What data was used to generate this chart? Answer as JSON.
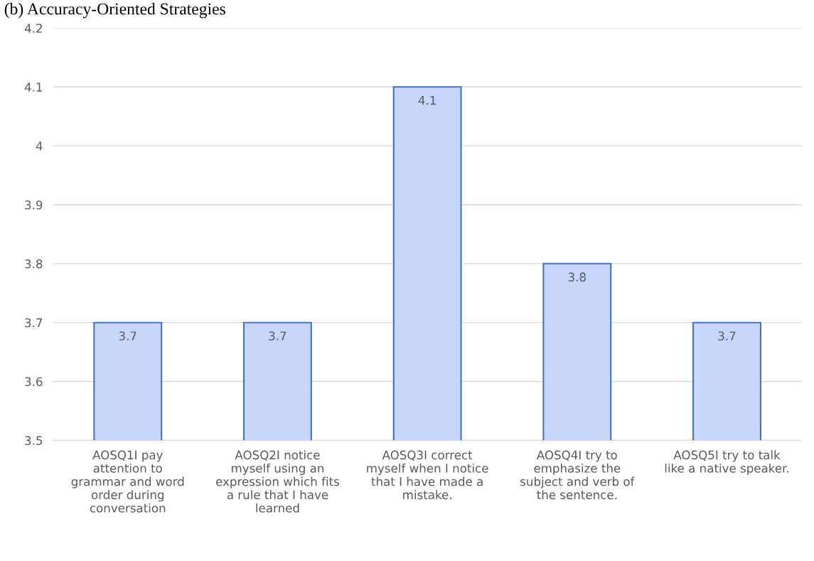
{
  "chart_data": {
    "type": "bar",
    "title": "(b) Accuracy-Oriented Strategies",
    "categories": [
      "AOSQ1I pay\nattention to\ngrammar and word\norder during\nconversation",
      "AOSQ2I notice\nmyself using an\nexpression which fits\na rule that I have\nlearned",
      "AOSQ3I correct\nmyself when I notice\nthat I have made a\nmistake.",
      "AOSQ4I try to\nemphasize the\nsubject and verb of\nthe sentence.",
      "AOSQ5I try to talk\nlike a native speaker."
    ],
    "values": [
      3.7,
      3.7,
      4.1,
      3.8,
      3.7
    ],
    "color": "#c9d6fb",
    "ylim": [
      3.5,
      4.2
    ],
    "yticks": [
      3.5,
      3.6,
      3.7,
      3.8,
      3.9,
      4,
      4.1,
      4.2
    ],
    "grid": "y",
    "data_labels": true
  }
}
